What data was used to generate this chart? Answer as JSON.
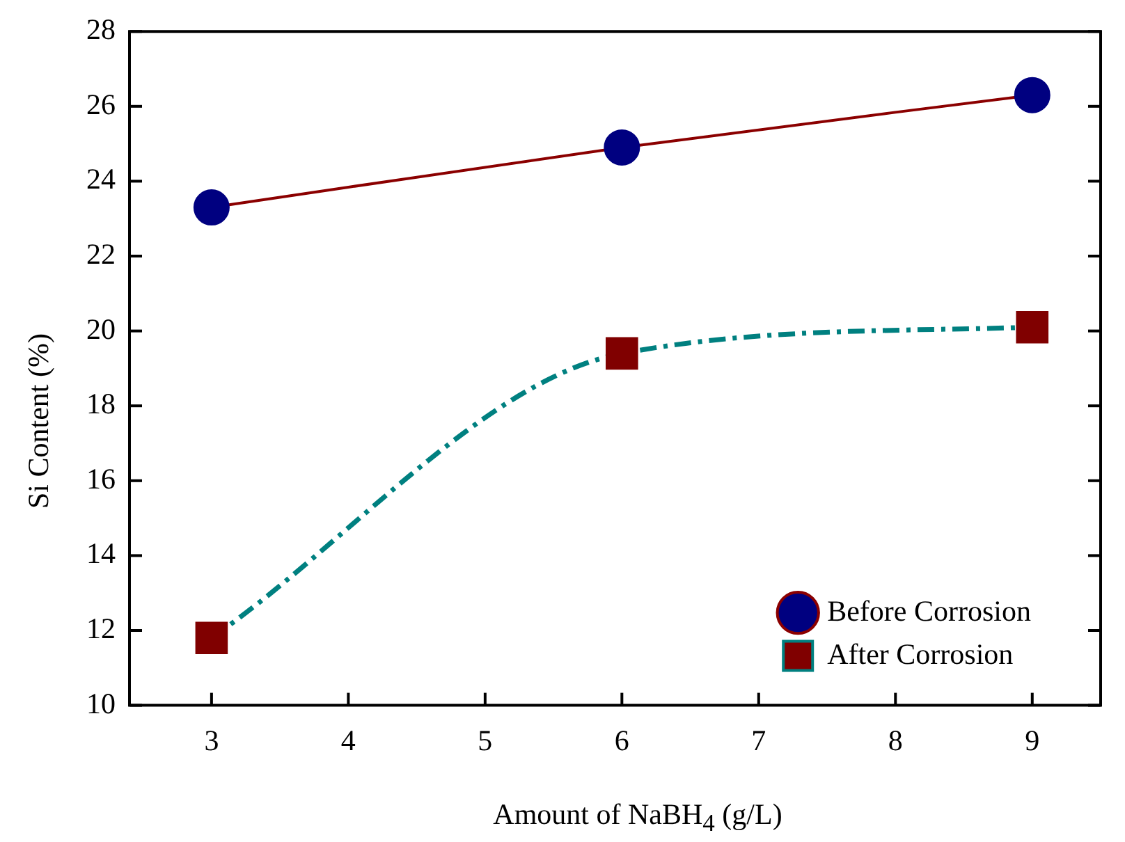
{
  "chart_data": {
    "type": "line",
    "xlabel": "Amount of NaBH$_{4}$ (g/L)",
    "ylabel": "Si Content (%)",
    "x": [
      3,
      6,
      9
    ],
    "series": [
      {
        "name": "Before Corrosion",
        "color": "#8b0000",
        "colors": [
          "#000080",
          "#000080",
          "#000080"
        ],
        "marker": "circle",
        "line_style": "solid",
        "values": [
          23.3,
          24.9,
          26.3
        ]
      },
      {
        "name": "After Corrosion",
        "color": "#008080",
        "colors": [
          "#800000",
          "#800000",
          "#800000"
        ],
        "marker": "square",
        "line_style": "dashed",
        "values": [
          11.8,
          19.4,
          20.1
        ]
      }
    ],
    "xlim": [
      2.4,
      9.5
    ],
    "xticks": [
      3,
      4,
      5,
      6,
      7,
      8,
      9
    ],
    "ylim": [
      10,
      28
    ],
    "yticks": [
      10,
      12,
      14,
      16,
      18,
      20,
      22,
      24,
      26,
      28
    ],
    "grid": false,
    "legend": "bottom right"
  }
}
